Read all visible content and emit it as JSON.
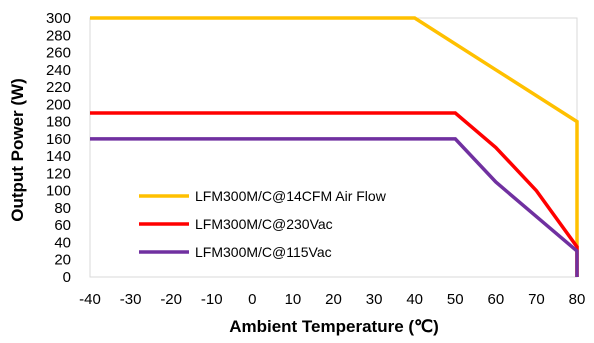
{
  "chart_data": {
    "type": "line",
    "title": "",
    "xlabel": "Ambient Temperature (℃)",
    "ylabel": "Output Power (W)",
    "xlim": [
      -40,
      80
    ],
    "ylim": [
      0,
      300
    ],
    "xticks": [
      -40,
      -30,
      -20,
      -10,
      0,
      10,
      20,
      30,
      40,
      50,
      60,
      70,
      80
    ],
    "yticks": [
      0,
      20,
      40,
      60,
      80,
      100,
      120,
      140,
      160,
      180,
      200,
      220,
      240,
      260,
      280,
      300
    ],
    "grid": false,
    "legend_position": "lower-left",
    "series": [
      {
        "name": "LFM300M/C@14CFM Air Flow",
        "color": "#FFC000",
        "points": [
          [
            -40,
            300
          ],
          [
            40,
            300
          ],
          [
            60,
            240
          ],
          [
            80,
            180
          ],
          [
            80,
            0
          ]
        ]
      },
      {
        "name": "LFM300M/C@230Vac",
        "color": "#FF0000",
        "points": [
          [
            -40,
            190
          ],
          [
            50,
            190
          ],
          [
            60,
            150
          ],
          [
            70,
            100
          ],
          [
            80,
            35
          ],
          [
            80,
            0
          ]
        ]
      },
      {
        "name": "LFM300M/C@115Vac",
        "color": "#7030A0",
        "points": [
          [
            -40,
            160
          ],
          [
            50,
            160
          ],
          [
            60,
            110
          ],
          [
            70,
            70
          ],
          [
            80,
            30
          ],
          [
            80,
            0
          ]
        ]
      }
    ]
  }
}
